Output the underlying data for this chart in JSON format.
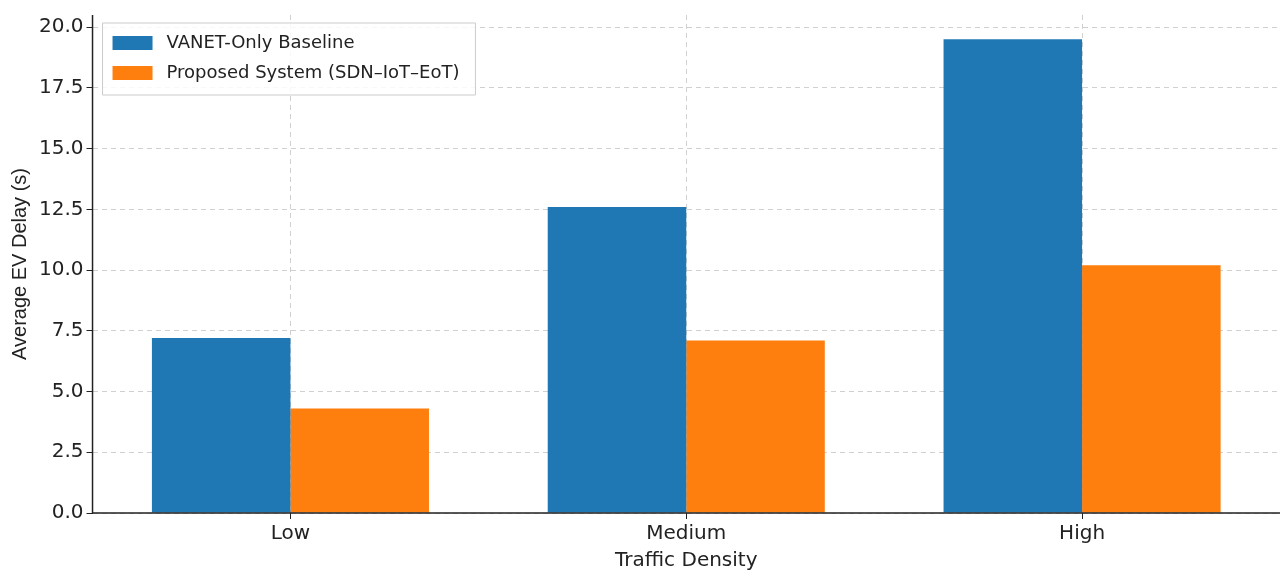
{
  "chart_data": {
    "type": "bar",
    "xlabel": "Traffic Density",
    "ylabel": "Average EV Delay (s)",
    "categories": [
      "Low",
      "Medium",
      "High"
    ],
    "series": [
      {
        "name": "VANET-Only Baseline",
        "color": "#1f77b4",
        "values": [
          7.2,
          12.6,
          19.5
        ]
      },
      {
        "name": "Proposed System (SDN–IoT–EoT)",
        "color": "#ff7f0e",
        "values": [
          4.3,
          7.1,
          10.2
        ]
      }
    ],
    "ylim": [
      0,
      20.5
    ],
    "yticks": [
      {
        "value": 0,
        "label": "0.0"
      },
      2.5,
      {
        "value": 5,
        "label": "5.0"
      },
      7.5,
      {
        "value": 10,
        "label": "10.0"
      },
      12.5,
      {
        "value": 15,
        "label": "15.0"
      },
      17.5,
      {
        "value": 20,
        "label": "20.0"
      }
    ],
    "grid": true,
    "legend": "top left"
  }
}
